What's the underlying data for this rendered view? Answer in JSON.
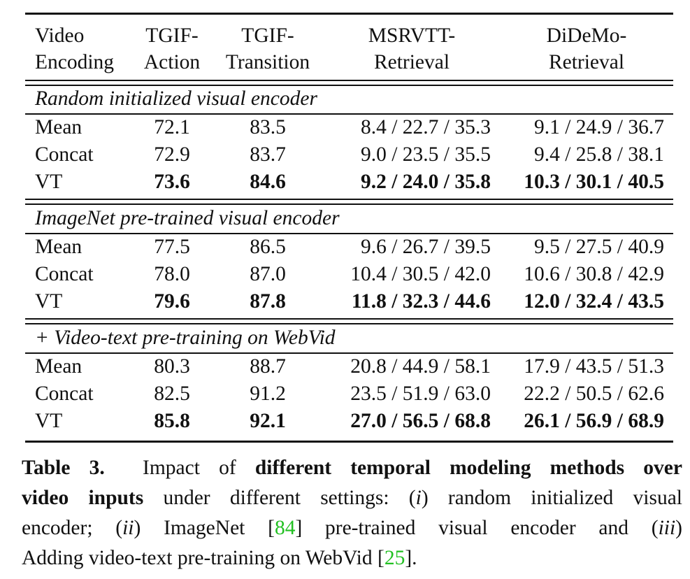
{
  "table": {
    "headers": [
      {
        "line1": "Video",
        "line2": "Encoding"
      },
      {
        "line1": "TGIF-",
        "line2": "Action"
      },
      {
        "line1": "TGIF-",
        "line2": "Transition"
      },
      {
        "line1": "MSRVTT-",
        "line2": "Retrieval"
      },
      {
        "line1": "DiDeMo-",
        "line2": "Retrieval"
      }
    ],
    "groups": [
      {
        "title": "Random initialized visual encoder",
        "rows": [
          {
            "method": "Mean",
            "tgif_action": "72.1",
            "tgif_transition": "83.5",
            "msrvtt": "8.4 / 22.7 / 35.3",
            "didemo": "9.1 / 24.9 / 36.7",
            "bold": false
          },
          {
            "method": "Concat",
            "tgif_action": "72.9",
            "tgif_transition": "83.7",
            "msrvtt": "9.0 / 23.5 / 35.5",
            "didemo": "9.4 / 25.8 / 38.1",
            "bold": false
          },
          {
            "method": "VT",
            "tgif_action": "73.6",
            "tgif_transition": "84.6",
            "msrvtt": "9.2 / 24.0 / 35.8",
            "didemo": "10.3 / 30.1 / 40.5",
            "bold": true
          }
        ]
      },
      {
        "title": "ImageNet pre-trained visual encoder",
        "rows": [
          {
            "method": "Mean",
            "tgif_action": "77.5",
            "tgif_transition": "86.5",
            "msrvtt": "9.6 / 26.7 / 39.5",
            "didemo": "9.5 / 27.5 / 40.9",
            "bold": false
          },
          {
            "method": "Concat",
            "tgif_action": "78.0",
            "tgif_transition": "87.0",
            "msrvtt": "10.4 / 30.5 / 42.0",
            "didemo": "10.6 / 30.8 / 42.9",
            "bold": false
          },
          {
            "method": "VT",
            "tgif_action": "79.6",
            "tgif_transition": "87.8",
            "msrvtt": "11.8 / 32.3 / 44.6",
            "didemo": "12.0 / 32.4 / 43.5",
            "bold": true
          }
        ]
      },
      {
        "title": "+ Video-text pre-training on WebVid",
        "rows": [
          {
            "method": "Mean",
            "tgif_action": "80.3",
            "tgif_transition": "88.7",
            "msrvtt": "20.8 / 44.9 / 58.1",
            "didemo": "17.9 / 43.5 / 51.3",
            "bold": false
          },
          {
            "method": "Concat",
            "tgif_action": "82.5",
            "tgif_transition": "91.2",
            "msrvtt": "23.5 / 51.9 / 63.0",
            "didemo": "22.2 / 50.5 / 62.6",
            "bold": false
          },
          {
            "method": "VT",
            "tgif_action": "85.8",
            "tgif_transition": "92.1",
            "msrvtt": "27.0 / 56.5 / 68.8",
            "didemo": "26.1 / 56.9 / 68.9",
            "bold": true
          }
        ]
      }
    ]
  },
  "caption": {
    "label": "Table 3.",
    "lead": "Impact of",
    "bold_phrase_1": "different temporal modeling methods over",
    "bold_phrase_2": "video inputs",
    "part_1": "under different settings: (",
    "roman_1": "i",
    "part_2": ") random initialized visual",
    "part_3": "encoder; (",
    "roman_2": "ii",
    "part_4": ") ImageNet [",
    "cite_1": "84",
    "part_5": "] pre-trained visual encoder and (",
    "roman_3": "iii",
    "part_6": ")",
    "part_7": "Adding video-text pre-training on WebVid [",
    "cite_2": "25",
    "part_8": "]."
  }
}
